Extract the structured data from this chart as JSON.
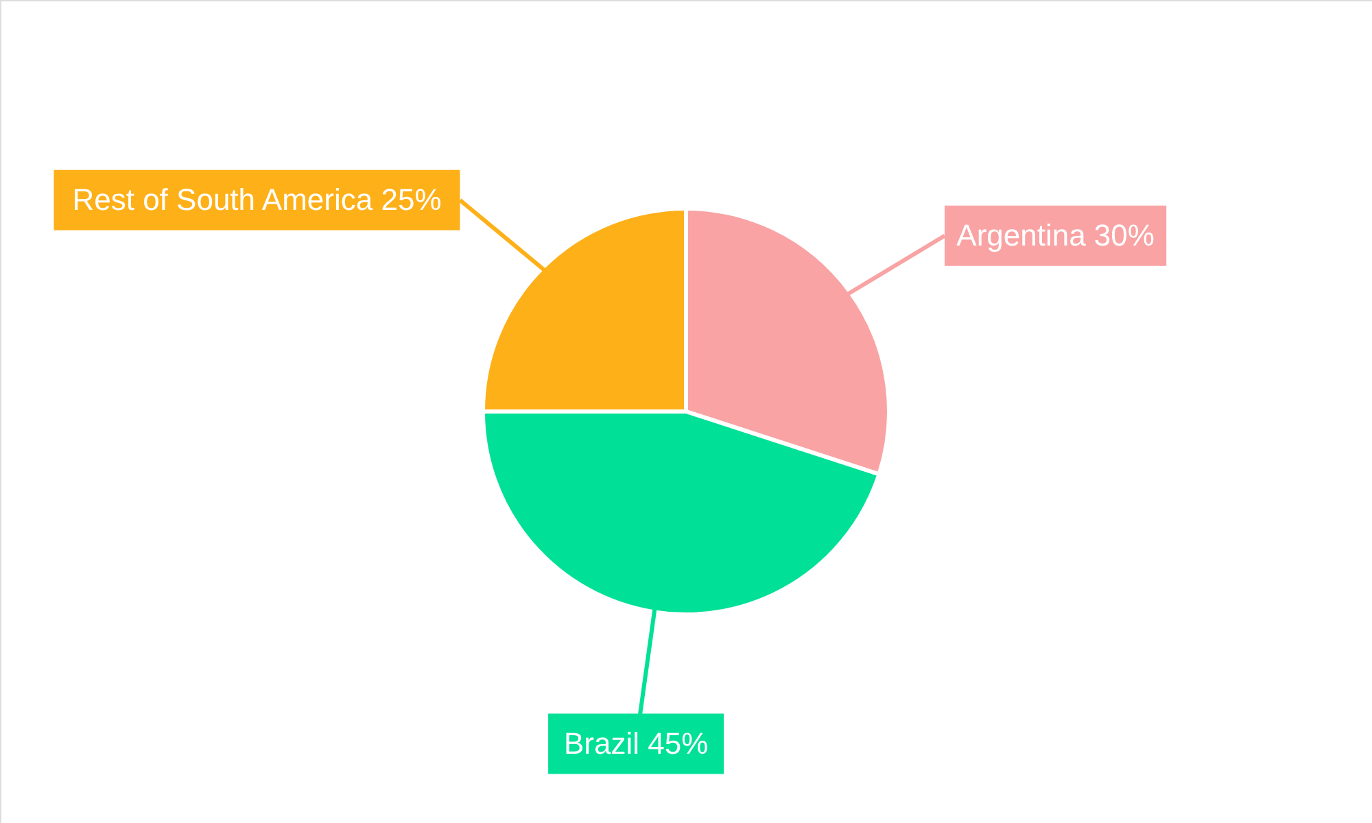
{
  "chart_data": {
    "type": "pie",
    "categories": [
      "Argentina",
      "Brazil",
      "Rest of South America"
    ],
    "values": [
      30,
      45,
      25
    ],
    "value_labels": [
      "30%",
      "45%",
      "25%"
    ],
    "colors": [
      "#f9a3a4",
      "#00e096",
      "#feb019"
    ]
  }
}
